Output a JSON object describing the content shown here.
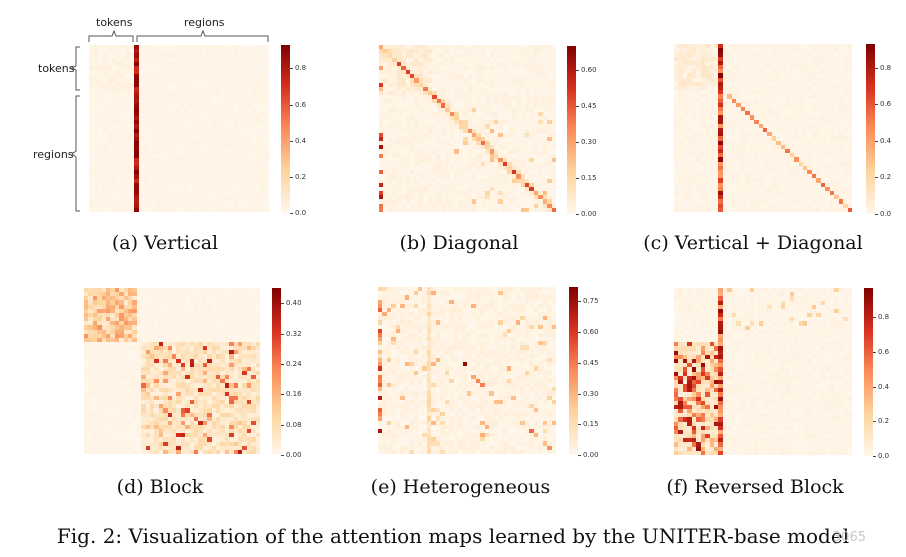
{
  "figure_caption": "Fig. 2: Visualization of the attention maps learned by the UNITER-base model",
  "watermark": "3065",
  "axis_labels": {
    "top_tokens": "tokens",
    "top_regions": "regions",
    "left_tokens": "tokens",
    "left_regions": "regions"
  },
  "colormap": [
    "#fff7ec",
    "#fdd49e",
    "#fc8d59",
    "#d7301f",
    "#7f0000"
  ],
  "panels": [
    {
      "id": "a",
      "caption": "(a) Vertical",
      "pattern": "vertical",
      "colorbar_ticks": [
        "0.0",
        "0.2",
        "0.4",
        "0.6",
        "0.8"
      ],
      "colorbar_max": 0.93
    },
    {
      "id": "b",
      "caption": "(b) Diagonal",
      "pattern": "diagonal",
      "colorbar_ticks": [
        "0.00",
        "0.15",
        "0.30",
        "0.45",
        "0.60"
      ],
      "colorbar_max": 0.7
    },
    {
      "id": "c",
      "caption": "(c) Vertical + Diagonal",
      "pattern": "vertdiag",
      "colorbar_ticks": [
        "0.0",
        "0.2",
        "0.4",
        "0.6",
        "0.8"
      ],
      "colorbar_max": 0.93
    },
    {
      "id": "d",
      "caption": "(d) Block",
      "pattern": "block",
      "colorbar_ticks": [
        "0.00",
        "0.08",
        "0.16",
        "0.24",
        "0.32",
        "0.40"
      ],
      "colorbar_max": 0.44
    },
    {
      "id": "e",
      "caption": "(e) Heterogeneous",
      "pattern": "hetero",
      "colorbar_ticks": [
        "0.00",
        "0.15",
        "0.30",
        "0.45",
        "0.60",
        "0.75"
      ],
      "colorbar_max": 0.82
    },
    {
      "id": "f",
      "caption": "(f) Reversed Block",
      "pattern": "revblock",
      "colorbar_ticks": [
        "0.0",
        "0.2",
        "0.4",
        "0.6",
        "0.8"
      ],
      "colorbar_max": 0.97
    }
  ]
}
